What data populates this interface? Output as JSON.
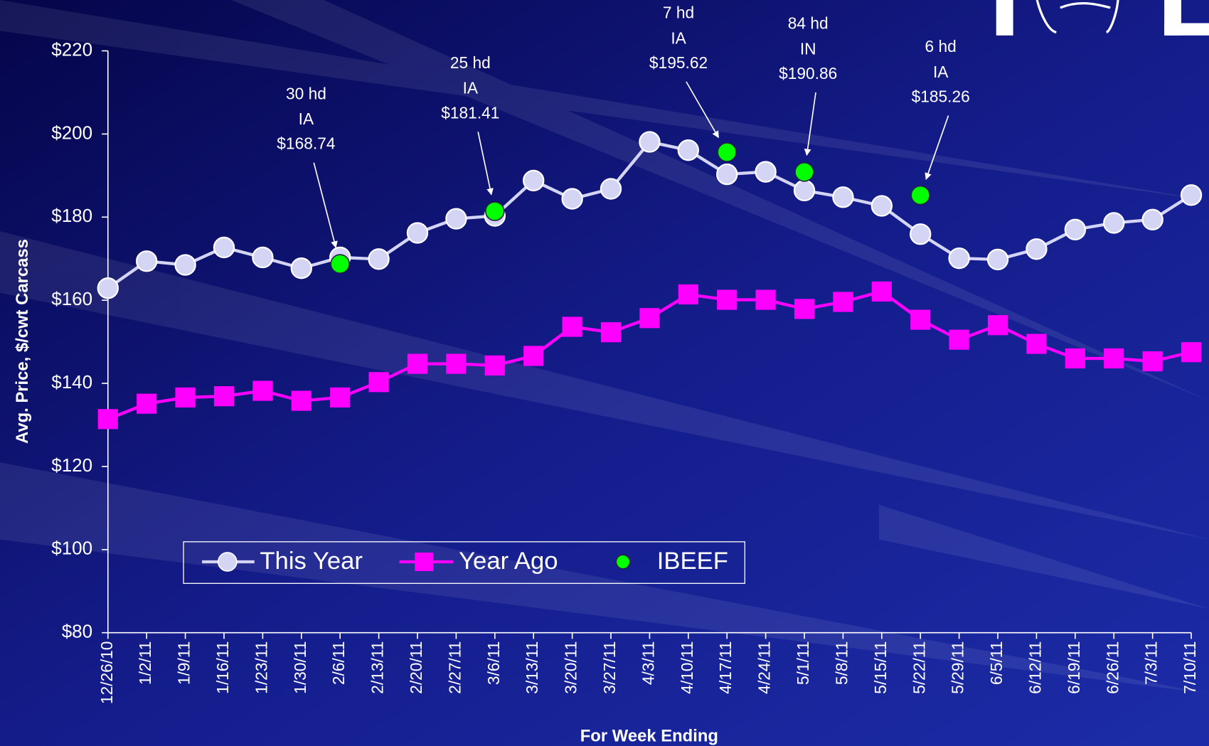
{
  "chart_data": {
    "type": "line",
    "x_label": "For Week Ending",
    "y_label": "Avg. Price, $/cwt Carcass",
    "categories": [
      "12/26/10",
      "1/2/11",
      "1/9/11",
      "1/16/11",
      "1/23/11",
      "1/30/11",
      "2/6/11",
      "2/13/11",
      "2/20/11",
      "2/27/11",
      "3/6/11",
      "3/13/11",
      "3/20/11",
      "3/27/11",
      "4/3/11",
      "4/10/11",
      "4/17/11",
      "4/24/11",
      "5/1/11",
      "5/8/11",
      "5/15/11",
      "5/22/11",
      "5/29/11",
      "6/5/11",
      "6/12/11",
      "6/19/11",
      "6/26/11",
      "7/3/11",
      "7/10/11"
    ],
    "ylim": [
      80,
      220
    ],
    "yticks": [
      {
        "value": 80,
        "label": "$80"
      },
      {
        "value": 100,
        "label": "$100"
      },
      {
        "value": 120,
        "label": "$120"
      },
      {
        "value": 140,
        "label": "$140"
      },
      {
        "value": 160,
        "label": "$160"
      },
      {
        "value": 180,
        "label": "$180"
      },
      {
        "value": 200,
        "label": "$200"
      },
      {
        "value": 220,
        "label": "$220"
      }
    ],
    "grid": false,
    "series": [
      {
        "name": "This Year",
        "color": "#d4d4f4",
        "marker": "circle",
        "line": true,
        "values": [
          162.9,
          169.4,
          168.5,
          172.7,
          170.3,
          167.7,
          170.3,
          169.9,
          176.2,
          179.6,
          180.3,
          188.8,
          184.4,
          186.8,
          198.1,
          196.1,
          190.3,
          190.9,
          186.4,
          184.8,
          182.7,
          175.9,
          170.1,
          169.8,
          172.3,
          177.0,
          178.6,
          179.4,
          185.3
        ]
      },
      {
        "name": "Year Ago",
        "color": "#ff00ff",
        "marker": "square",
        "line": true,
        "values": [
          131.4,
          135.1,
          136.6,
          136.9,
          138.2,
          135.8,
          136.6,
          140.3,
          144.7,
          144.7,
          144.3,
          146.6,
          153.6,
          152.3,
          155.7,
          161.4,
          160.1,
          160.1,
          157.9,
          159.6,
          162.1,
          155.3,
          150.5,
          154.0,
          149.5,
          146.0,
          146.0,
          145.3,
          147.5
        ]
      },
      {
        "name": "IBEEF",
        "color": "#00ff00",
        "marker": "circle",
        "line": false,
        "values": [
          null,
          null,
          null,
          null,
          null,
          null,
          168.74,
          null,
          null,
          null,
          181.41,
          null,
          null,
          null,
          null,
          null,
          195.62,
          null,
          190.86,
          null,
          null,
          185.26,
          null,
          null,
          null,
          null,
          null,
          null,
          null
        ],
        "value_labels": [
          null,
          null,
          null,
          null,
          null,
          null,
          "$168.74",
          null,
          null,
          null,
          "$181.41",
          null,
          null,
          null,
          null,
          null,
          "$195.62",
          null,
          "$190.86",
          null,
          null,
          "$185.26",
          null,
          null,
          null,
          null,
          null,
          null,
          null
        ],
        "head_labels": [
          null,
          null,
          null,
          null,
          null,
          null,
          "30 hd",
          null,
          null,
          null,
          "25 hd",
          null,
          null,
          null,
          null,
          null,
          "7 hd",
          null,
          "84 hd",
          null,
          null,
          "6 hd",
          null,
          null,
          null,
          null,
          null,
          null,
          null
        ],
        "state_labels": [
          null,
          null,
          null,
          null,
          null,
          null,
          "IA",
          null,
          null,
          null,
          "IA",
          null,
          null,
          null,
          null,
          null,
          "IA",
          null,
          "IN",
          null,
          null,
          "IA",
          null,
          null,
          null,
          null,
          null,
          null,
          null
        ]
      }
    ]
  }
}
